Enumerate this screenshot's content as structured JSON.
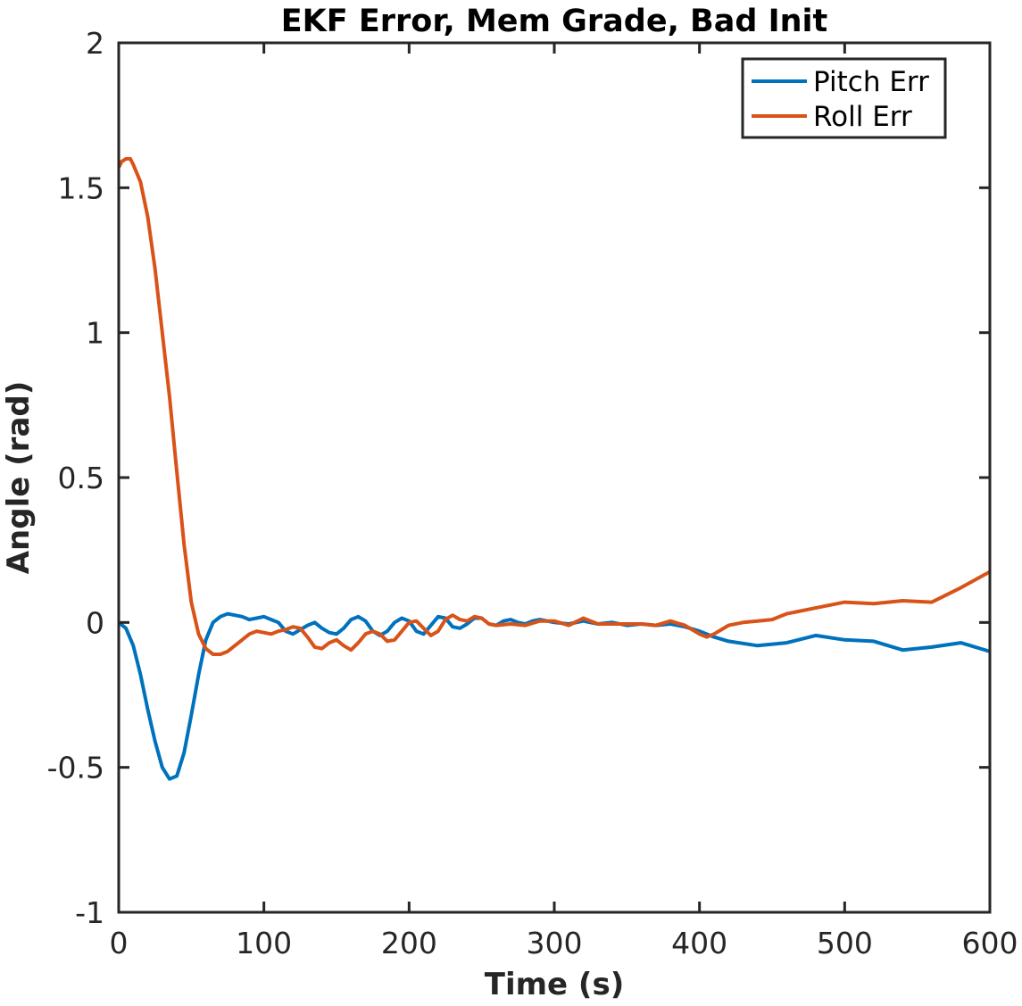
{
  "chart_data": {
    "type": "line",
    "title": "EKF Error, Mem Grade, Bad Init",
    "xlabel": "Time (s)",
    "ylabel": "Angle (rad)",
    "xlim": [
      0,
      600
    ],
    "ylim": [
      -1,
      2
    ],
    "xticks": [
      0,
      100,
      200,
      300,
      400,
      500,
      600
    ],
    "xtick_labels": [
      "0",
      "100",
      "200",
      "300",
      "400",
      "500",
      "600"
    ],
    "yticks": [
      -1,
      -0.5,
      0,
      0.5,
      1,
      1.5,
      2
    ],
    "ytick_labels": [
      "-1",
      "-0.5",
      "0",
      "0.5",
      "1",
      "1.5",
      "2"
    ],
    "grid": false,
    "legend_position": "top-right",
    "series": [
      {
        "name": "Pitch Err",
        "color": "#0072bd",
        "x": [
          0,
          5,
          10,
          15,
          20,
          25,
          30,
          35,
          40,
          45,
          50,
          55,
          60,
          65,
          70,
          75,
          80,
          85,
          90,
          95,
          100,
          105,
          110,
          115,
          120,
          125,
          130,
          135,
          140,
          145,
          150,
          155,
          160,
          165,
          170,
          175,
          180,
          185,
          190,
          195,
          200,
          205,
          210,
          215,
          220,
          225,
          230,
          235,
          240,
          245,
          250,
          255,
          260,
          265,
          270,
          275,
          280,
          285,
          290,
          295,
          300,
          310,
          320,
          330,
          340,
          350,
          360,
          370,
          380,
          390,
          400,
          410,
          420,
          440,
          460,
          480,
          500,
          520,
          540,
          560,
          580,
          600
        ],
        "y": [
          0,
          -0.02,
          -0.08,
          -0.18,
          -0.3,
          -0.41,
          -0.5,
          -0.54,
          -0.53,
          -0.45,
          -0.32,
          -0.18,
          -0.06,
          0.0,
          0.02,
          0.03,
          0.025,
          0.02,
          0.01,
          0.015,
          0.02,
          0.01,
          0.0,
          -0.03,
          -0.04,
          -0.025,
          -0.01,
          0.0,
          -0.02,
          -0.035,
          -0.04,
          -0.02,
          0.01,
          0.02,
          0.005,
          -0.03,
          -0.045,
          -0.03,
          0.0,
          0.015,
          0.005,
          -0.03,
          -0.04,
          -0.01,
          0.02,
          0.015,
          -0.015,
          -0.02,
          -0.005,
          0.015,
          0.015,
          -0.005,
          -0.01,
          0.005,
          0.01,
          0.0,
          -0.005,
          0.005,
          0.01,
          0.005,
          0.0,
          -0.005,
          0.005,
          -0.005,
          0.0,
          -0.01,
          -0.005,
          -0.01,
          -0.005,
          -0.015,
          -0.03,
          -0.05,
          -0.065,
          -0.08,
          -0.07,
          -0.045,
          -0.06,
          -0.065,
          -0.095,
          -0.085,
          -0.07,
          -0.1
        ]
      },
      {
        "name": "Roll Err",
        "color": "#d95319",
        "x": [
          0,
          2,
          5,
          8,
          10,
          15,
          20,
          25,
          30,
          35,
          40,
          45,
          50,
          55,
          60,
          65,
          70,
          75,
          80,
          85,
          90,
          95,
          100,
          105,
          110,
          115,
          120,
          125,
          130,
          135,
          140,
          145,
          150,
          155,
          160,
          165,
          170,
          175,
          180,
          185,
          190,
          195,
          200,
          205,
          210,
          215,
          220,
          225,
          230,
          235,
          240,
          245,
          250,
          255,
          260,
          270,
          280,
          290,
          300,
          310,
          320,
          330,
          340,
          350,
          360,
          370,
          380,
          390,
          400,
          405,
          410,
          420,
          430,
          440,
          450,
          460,
          480,
          500,
          520,
          540,
          560,
          580,
          600
        ],
        "y": [
          1.57,
          1.59,
          1.6,
          1.6,
          1.58,
          1.52,
          1.4,
          1.22,
          1.0,
          0.78,
          0.52,
          0.27,
          0.07,
          -0.04,
          -0.09,
          -0.11,
          -0.11,
          -0.1,
          -0.08,
          -0.06,
          -0.04,
          -0.03,
          -0.035,
          -0.04,
          -0.03,
          -0.025,
          -0.015,
          -0.02,
          -0.05,
          -0.085,
          -0.09,
          -0.07,
          -0.06,
          -0.08,
          -0.095,
          -0.07,
          -0.04,
          -0.03,
          -0.04,
          -0.065,
          -0.06,
          -0.03,
          0.0,
          0.005,
          -0.02,
          -0.045,
          -0.03,
          0.01,
          0.025,
          0.01,
          0.005,
          0.02,
          0.015,
          -0.005,
          -0.01,
          -0.005,
          -0.01,
          0.005,
          0.005,
          -0.01,
          0.015,
          -0.005,
          -0.005,
          -0.005,
          -0.005,
          -0.01,
          0.005,
          -0.01,
          -0.04,
          -0.05,
          -0.04,
          -0.01,
          0.0,
          0.005,
          0.01,
          0.03,
          0.05,
          0.07,
          0.065,
          0.075,
          0.07,
          0.12,
          0.175
        ]
      }
    ]
  }
}
